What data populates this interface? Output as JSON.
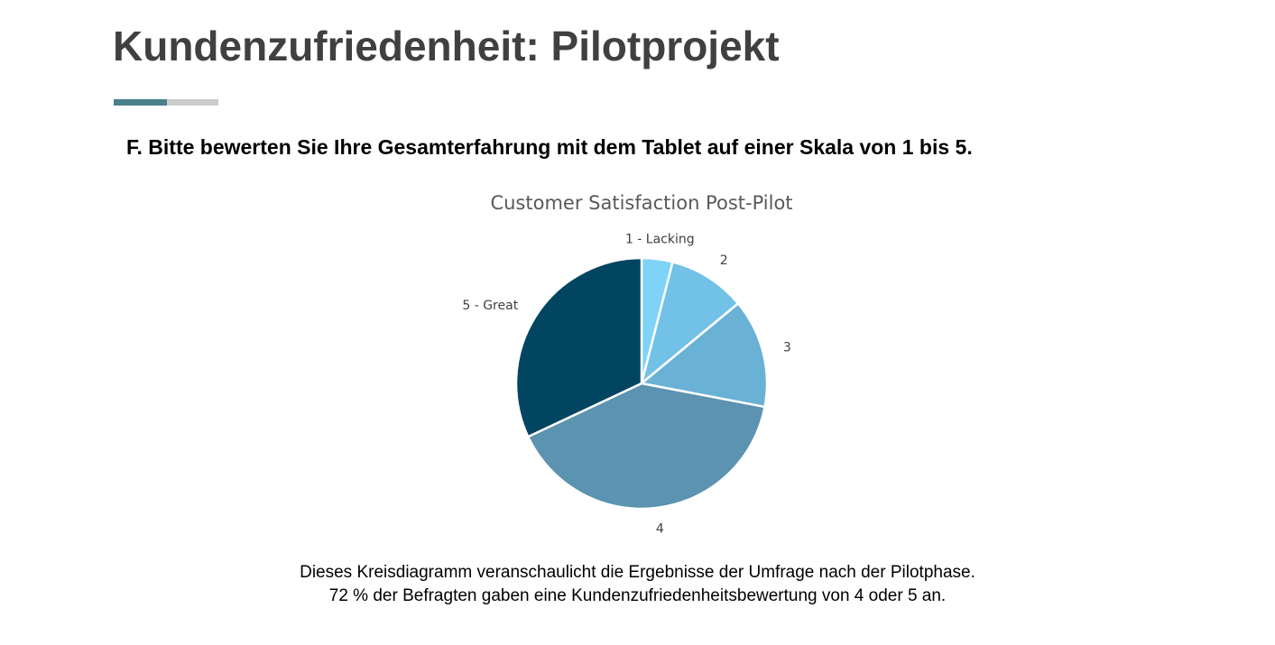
{
  "slide": {
    "title": "Kundenzufriedenheit: Pilotprojekt",
    "question": "F. Bitte bewerten Sie Ihre Gesamterfahrung mit dem Tablet auf einer Skala von 1 bis 5.",
    "caption_line1": "Dieses Kreisdiagramm veranschaulicht die Ergebnisse der Umfrage nach der Pilotphase.",
    "caption_line2": "72 % der Befragten gaben eine Kundenzufriedenheitsbewertung von 4 oder 5 an.",
    "accent_colors": [
      "#4a7f8c",
      "#cccccc"
    ]
  },
  "chart_data": {
    "type": "pie",
    "title": "Customer Satisfaction Post-Pilot",
    "categories": [
      "1 - Lacking",
      "2",
      "3",
      "4",
      "5 - Great"
    ],
    "values": [
      4,
      10,
      14,
      40,
      32
    ],
    "colors": [
      "#7fd3f7",
      "#72c1e7",
      "#6ab1d6",
      "#5b93b0",
      "#024560"
    ],
    "start_angle_deg": 0,
    "direction": "clockwise"
  }
}
